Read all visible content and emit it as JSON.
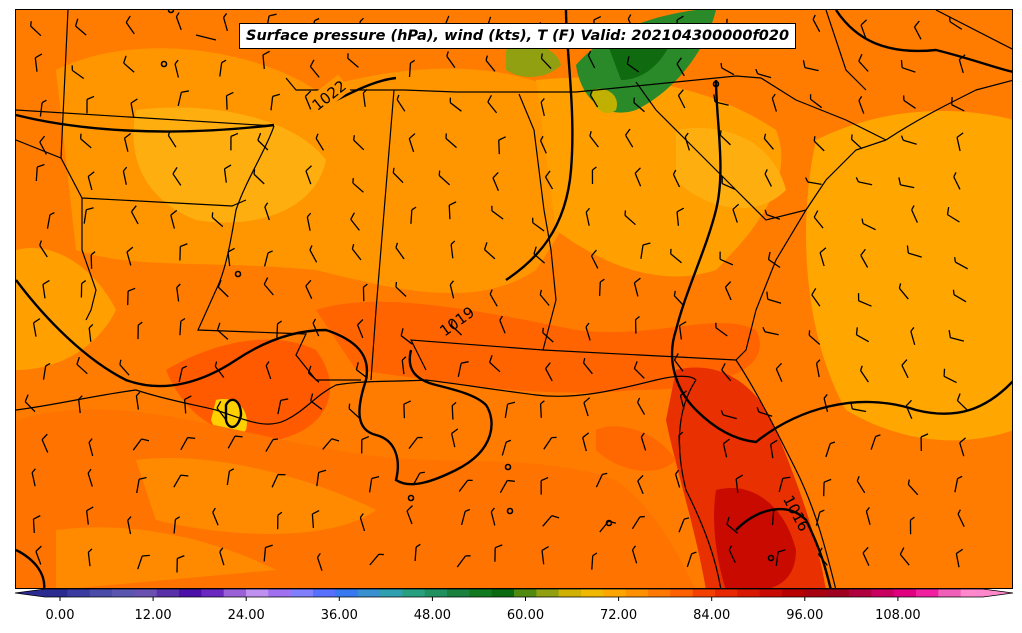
{
  "title": "Surface pressure (hPa), wind (kts), T (F) Valid: 202104300000f020",
  "isobar_labels": [
    "1022",
    "1019",
    "1016"
  ],
  "colorbar": {
    "ticks": [
      "0.00",
      "12.00",
      "24.00",
      "36.00",
      "48.00",
      "60.00",
      "72.00",
      "84.00",
      "96.00",
      "108.00"
    ],
    "colors": [
      "#2a2a90",
      "#3a3aa0",
      "#4a4aa8",
      "#5a56b0",
      "#6a50b0",
      "#5a30a8",
      "#4a10a8",
      "#6a28c0",
      "#9a60d8",
      "#c090f0",
      "#a070f0",
      "#8080ff",
      "#5870ff",
      "#3878f0",
      "#3890d0",
      "#30a0b0",
      "#28a080",
      "#209060",
      "#1a8040",
      "#107a20",
      "#0a6a10",
      "#508a10",
      "#90a010",
      "#d0b000",
      "#f0b800",
      "#ffa500",
      "#ff9000",
      "#ff7800",
      "#ff6000",
      "#f44000",
      "#e82800",
      "#d81800",
      "#c80a00",
      "#b80000",
      "#a80010",
      "#a00020",
      "#b00040",
      "#c80060",
      "#e00080",
      "#f020a0",
      "#f060b8",
      "#ff88cc"
    ]
  }
}
